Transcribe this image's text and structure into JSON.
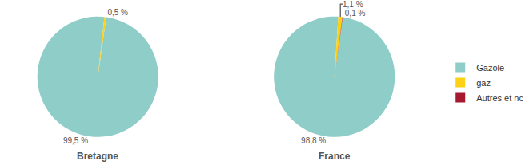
{
  "chart_data": [
    {
      "type": "pie",
      "title": "Bretagne",
      "categories": [
        "Gazole",
        "gaz"
      ],
      "values": [
        99.5,
        0.5
      ],
      "value_labels": [
        "99,5 %",
        "0,5 %"
      ],
      "colors": [
        "#8ecdc8",
        "#fcd116"
      ],
      "data_labels": true,
      "legend": "right"
    },
    {
      "type": "pie",
      "title": "France",
      "categories": [
        "Gazole",
        "gaz",
        "Autres et nc"
      ],
      "values": [
        98.8,
        1.1,
        0.1
      ],
      "value_labels": [
        "98,8 %",
        "1,1 %",
        "0,1 %"
      ],
      "colors": [
        "#8ecdc8",
        "#fcd116",
        "#a6192e"
      ],
      "data_labels": true,
      "legend": "right"
    }
  ]
}
